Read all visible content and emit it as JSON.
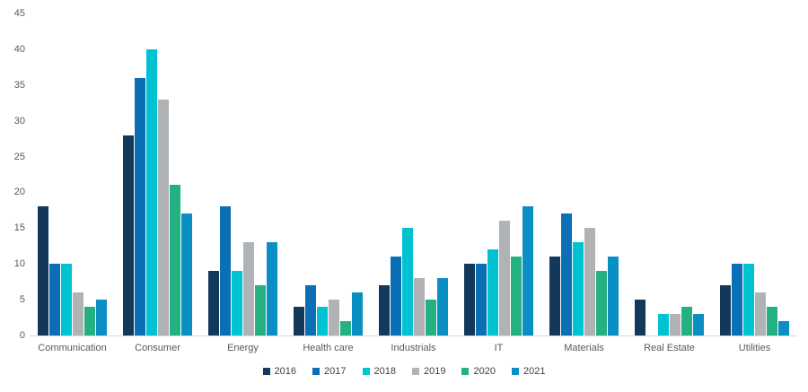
{
  "chart_data": {
    "type": "bar",
    "title": "",
    "xlabel": "",
    "ylabel": "",
    "categories": [
      "Communication",
      "Consumer",
      "Energy",
      "Health care",
      "Industrials",
      "IT",
      "Materials",
      "Real Estate",
      "Utilities"
    ],
    "series": [
      {
        "name": "2016",
        "color": "#12395B",
        "values": [
          18,
          28,
          9,
          4,
          7,
          10,
          11,
          5,
          7
        ]
      },
      {
        "name": "2017",
        "color": "#0A6FB4",
        "values": [
          10,
          36,
          18,
          7,
          11,
          10,
          17,
          0,
          10
        ]
      },
      {
        "name": "2018",
        "color": "#00C3D2",
        "values": [
          10,
          40,
          9,
          4,
          15,
          12,
          13,
          3,
          10
        ]
      },
      {
        "name": "2019",
        "color": "#AFB3B5",
        "values": [
          6,
          33,
          13,
          5,
          8,
          16,
          15,
          3,
          6
        ]
      },
      {
        "name": "2020",
        "color": "#23B181",
        "values": [
          4,
          21,
          7,
          2,
          5,
          11,
          9,
          4,
          4
        ]
      },
      {
        "name": "2021",
        "color": "#0A8FC4",
        "values": [
          5,
          17,
          13,
          6,
          8,
          18,
          11,
          3,
          2
        ]
      }
    ],
    "ylim": [
      0,
      45
    ],
    "yticks": [
      "0",
      "5",
      "10",
      "15",
      "20",
      "25",
      "30",
      "35",
      "40",
      "45"
    ],
    "grid": false,
    "legend_position": "bottom",
    "axis_line_color": "#D9D9D9",
    "tick_label_color": "#595959",
    "legend_label_color": "#404040"
  }
}
